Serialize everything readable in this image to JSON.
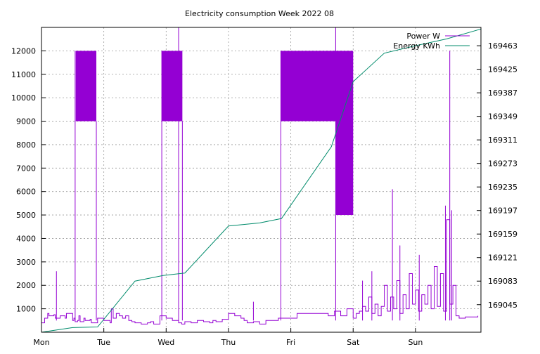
{
  "chart_data": {
    "type": "line",
    "title": "Electricity consumption Week 2022 08",
    "xlabel": "",
    "ylabel": "",
    "x_categories": [
      "Mon",
      "Tue",
      "Wed",
      "Thu",
      "Fri",
      "Sat",
      "Sun"
    ],
    "xlim": [
      0,
      7.05
    ],
    "y1_ticks": [
      1000,
      2000,
      3000,
      4000,
      5000,
      6000,
      7000,
      8000,
      9000,
      10000,
      11000,
      12000
    ],
    "ylim": [
      0,
      13000
    ],
    "y2_ticks": [
      169045,
      169083,
      169121,
      169159,
      169197,
      169235,
      169273,
      169311,
      169349,
      169387,
      169425,
      169463
    ],
    "y2lim": [
      169000.5,
      169492.6
    ],
    "grid": true,
    "legend_position": "top-right",
    "series": [
      {
        "name": "Power W",
        "axis": "y1",
        "color": "#9400D3",
        "x": [
          0,
          0.05,
          0.1,
          0.12,
          0.2,
          0.22,
          0.3,
          0.38,
          0.4,
          0.5,
          0.52,
          0.54,
          0.58,
          0.6,
          0.62,
          0.68,
          0.7,
          0.78,
          0.8,
          0.9,
          1.0,
          1.1,
          1.12,
          1.15,
          1.2,
          1.25,
          1.3,
          1.35,
          1.4,
          1.45,
          1.5,
          1.6,
          1.7,
          1.75,
          1.8,
          1.9,
          1.95,
          2.0,
          2.1,
          2.2,
          2.25,
          2.3,
          2.4,
          2.5,
          2.6,
          2.7,
          2.75,
          2.8,
          2.9,
          3.0,
          3.1,
          3.2,
          3.25,
          3.3,
          3.4,
          3.5,
          3.6,
          3.7,
          3.8,
          4.1,
          4.5,
          4.6,
          4.7,
          4.8,
          4.9,
          5.0,
          5.05,
          5.1,
          5.15,
          5.2,
          5.25,
          5.3,
          5.35,
          5.4,
          5.45,
          5.5,
          5.55,
          5.6,
          5.65,
          5.7,
          5.75,
          5.8,
          5.85,
          5.9,
          5.95,
          6.0,
          6.05,
          6.1,
          6.15,
          6.2,
          6.25,
          6.3,
          6.35,
          6.4,
          6.45,
          6.5,
          6.55,
          6.6,
          6.65,
          6.7,
          6.8,
          6.9,
          7.0
        ],
        "y": [
          400,
          600,
          800,
          700,
          750,
          600,
          700,
          600,
          800,
          500,
          600,
          450,
          500,
          700,
          450,
          600,
          500,
          550,
          400,
          600,
          500,
          400,
          1000,
          600,
          800,
          700,
          600,
          700,
          500,
          450,
          400,
          350,
          400,
          450,
          350,
          700,
          700,
          600,
          500,
          400,
          350,
          450,
          400,
          500,
          450,
          400,
          500,
          450,
          550,
          800,
          700,
          600,
          500,
          400,
          450,
          350,
          500,
          500,
          600,
          800,
          800,
          700,
          900,
          700,
          1000,
          600,
          800,
          900,
          1100,
          900,
          1500,
          800,
          1200,
          700,
          1100,
          2000,
          900,
          1500,
          1000,
          2200,
          800,
          1600,
          1000,
          2500,
          1200,
          1800,
          900,
          1600,
          1200,
          2000,
          1000,
          2800,
          1100,
          2500,
          900,
          4800,
          1200,
          2000,
          700,
          600,
          650,
          650,
          700
        ]
      },
      {
        "name": "Energy KWh",
        "axis": "y2",
        "color": "#008B6B",
        "x": [
          0,
          0.5,
          0.9,
          1.5,
          1.95,
          2.3,
          3.0,
          3.5,
          3.85,
          4.65,
          5.0,
          5.5,
          6.0,
          6.5,
          7.05
        ],
        "y": [
          169000.5,
          169008,
          169009,
          169083,
          169092,
          169096,
          169172,
          169177,
          169184,
          169300,
          169405,
          169451,
          169463,
          169474,
          169490
        ]
      }
    ],
    "block_overlays": [
      {
        "x_range": [
          0.55,
          0.88
        ],
        "y_range": [
          9000,
          12000
        ]
      },
      {
        "x_range": [
          1.93,
          2.26
        ],
        "y_range": [
          9000,
          12000
        ]
      },
      {
        "x_range": [
          3.84,
          4.72
        ],
        "y_range": [
          9000,
          12000
        ]
      },
      {
        "x_range": [
          4.72,
          5.0
        ],
        "y_range": [
          5000,
          12000
        ]
      }
    ],
    "spikes": [
      {
        "x": 0.24,
        "y": 2600
      },
      {
        "x": 0.54,
        "y": 12000
      },
      {
        "x": 0.88,
        "y": 9000
      },
      {
        "x": 1.93,
        "y": 12000
      },
      {
        "x": 2.2,
        "y": 13000
      },
      {
        "x": 2.26,
        "y": 9000
      },
      {
        "x": 3.4,
        "y": 1300
      },
      {
        "x": 3.84,
        "y": 12000
      },
      {
        "x": 4.72,
        "y": 13000
      },
      {
        "x": 5.15,
        "y": 2200
      },
      {
        "x": 5.3,
        "y": 2600
      },
      {
        "x": 5.63,
        "y": 6100
      },
      {
        "x": 5.75,
        "y": 3700
      },
      {
        "x": 6.06,
        "y": 3300
      },
      {
        "x": 6.48,
        "y": 5400
      },
      {
        "x": 6.55,
        "y": 12000
      },
      {
        "x": 6.58,
        "y": 5200
      }
    ]
  }
}
